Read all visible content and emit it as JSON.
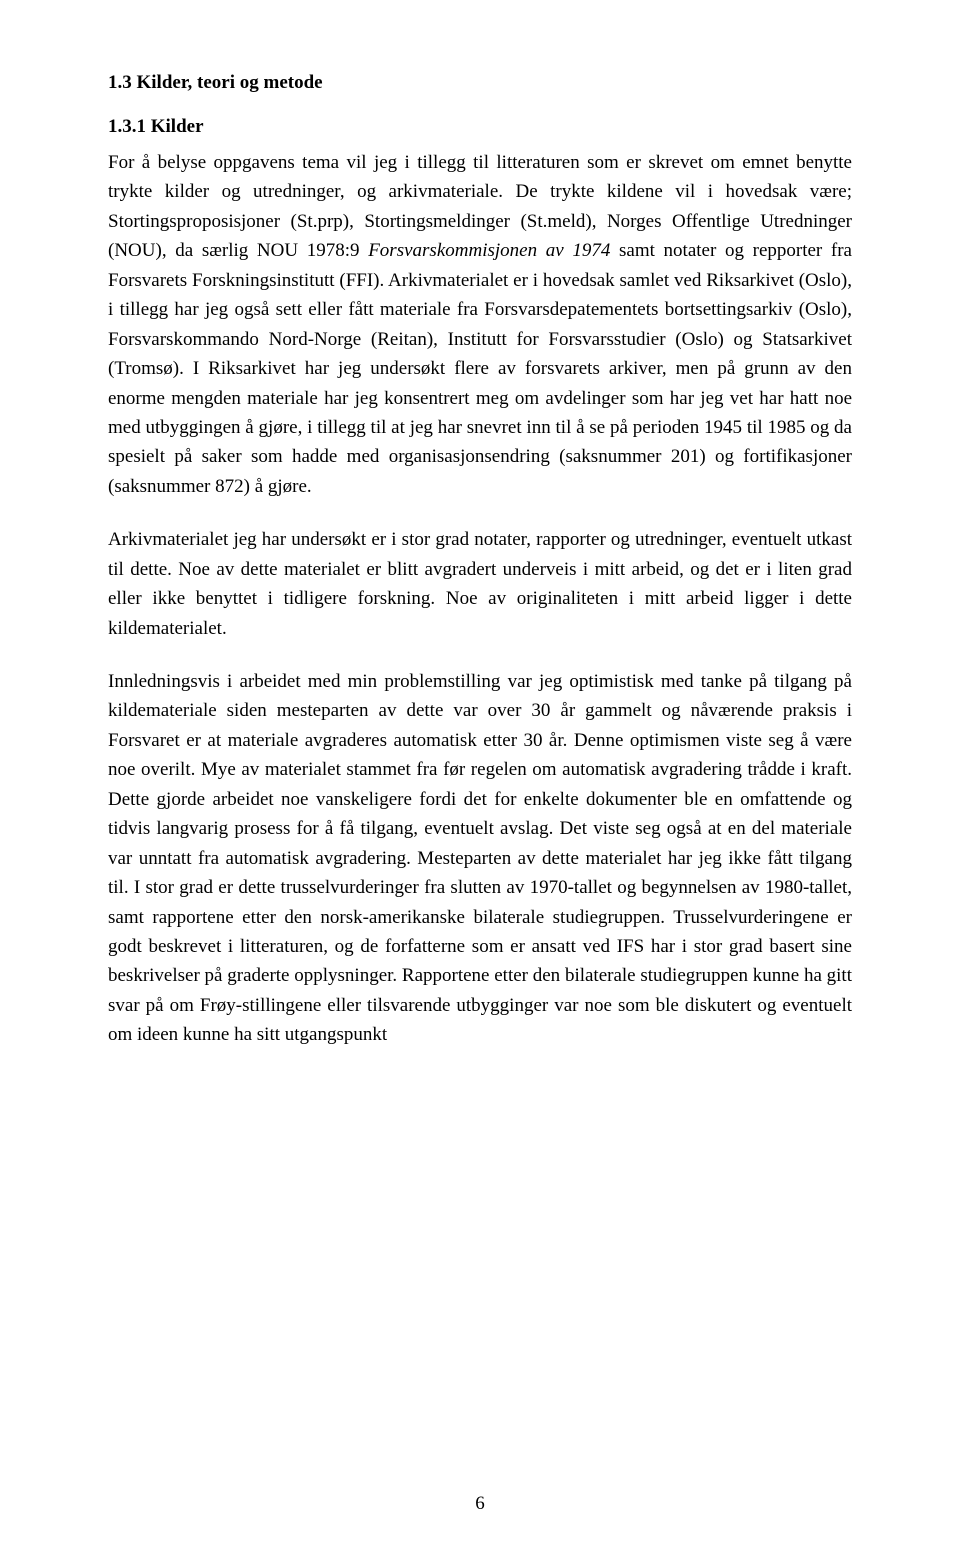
{
  "colors": {
    "background": "#ffffff",
    "text": "#000000"
  },
  "typography": {
    "font_family": "Times New Roman",
    "heading_fontsize": 19,
    "heading_weight": "bold",
    "body_fontsize": 19,
    "line_height": 1.55,
    "text_align": "justify"
  },
  "headings": {
    "h1": "1.3 Kilder, teori og metode",
    "h2": "1.3.1 Kilder"
  },
  "paragraphs": {
    "p1_a": "For å belyse oppgavens tema vil jeg i tillegg til litteraturen som er skrevet om emnet benytte trykte kilder og utredninger, og arkivmateriale. De trykte kildene vil i hovedsak være; Stortingsproposisjoner (St.prp), Stortingsmeldinger (St.meld), Norges Offentlige Utredninger (NOU), da særlig NOU 1978:9 ",
    "p1_italic": "Forsvarskommisjonen av 1974",
    "p1_b": " samt notater og repporter fra Forsvarets Forskningsinstitutt (FFI). Arkivmaterialet er i hovedsak samlet ved Riksarkivet (Oslo), i tillegg har jeg også sett eller fått materiale fra Forsvarsdepatementets bortsettingsarkiv (Oslo), Forsvarskommando Nord-Norge (Reitan), Institutt for Forsvarsstudier (Oslo) og Statsarkivet (Tromsø). I Riksarkivet har jeg undersøkt flere av forsvarets arkiver, men på grunn av den enorme mengden materiale har jeg konsentrert meg om avdelinger som har jeg vet har hatt noe med utbyggingen å gjøre, i tillegg til at jeg har snevret inn til å se på perioden 1945 til 1985 og da spesielt på saker som hadde med organisasjonsendring (saksnummer 201) og fortifikasjoner (saksnummer 872) å gjøre.",
    "p2": "Arkivmaterialet jeg har undersøkt er i stor grad notater, rapporter og utredninger, eventuelt utkast til dette. Noe av dette materialet er blitt avgradert underveis i mitt arbeid, og det er i liten grad eller ikke benyttet i tidligere forskning. Noe av originaliteten i mitt arbeid ligger i dette kildematerialet.",
    "p3": "Innledningsvis i arbeidet med min problemstilling var jeg optimistisk med tanke på tilgang på kildemateriale siden mesteparten av dette var over 30 år gammelt og nåværende praksis i Forsvaret er at materiale avgraderes automatisk etter 30 år. Denne optimismen viste seg å være noe overilt. Mye av materialet stammet fra før regelen om automatisk avgradering trådde i kraft. Dette gjorde arbeidet noe vanskeligere fordi det for enkelte dokumenter ble en omfattende og tidvis langvarig prosess for å få tilgang, eventuelt avslag. Det viste seg også at en del materiale var unntatt fra automatisk avgradering. Mesteparten av dette materialet har jeg ikke fått tilgang til. I stor grad er dette trusselvurderinger fra slutten av 1970-tallet og begynnelsen av 1980-tallet, samt rapportene etter den norsk-amerikanske bilaterale studiegruppen. Trusselvurderingene er godt beskrevet i litteraturen, og de forfatterne som er ansatt ved IFS har i stor grad basert sine beskrivelser på graderte opplysninger. Rapportene etter den bilaterale studiegruppen kunne ha gitt svar på om Frøy-stillingene eller tilsvarende utbygginger var noe som ble diskutert og eventuelt om ideen kunne ha sitt utgangspunkt"
  },
  "page_number": "6"
}
